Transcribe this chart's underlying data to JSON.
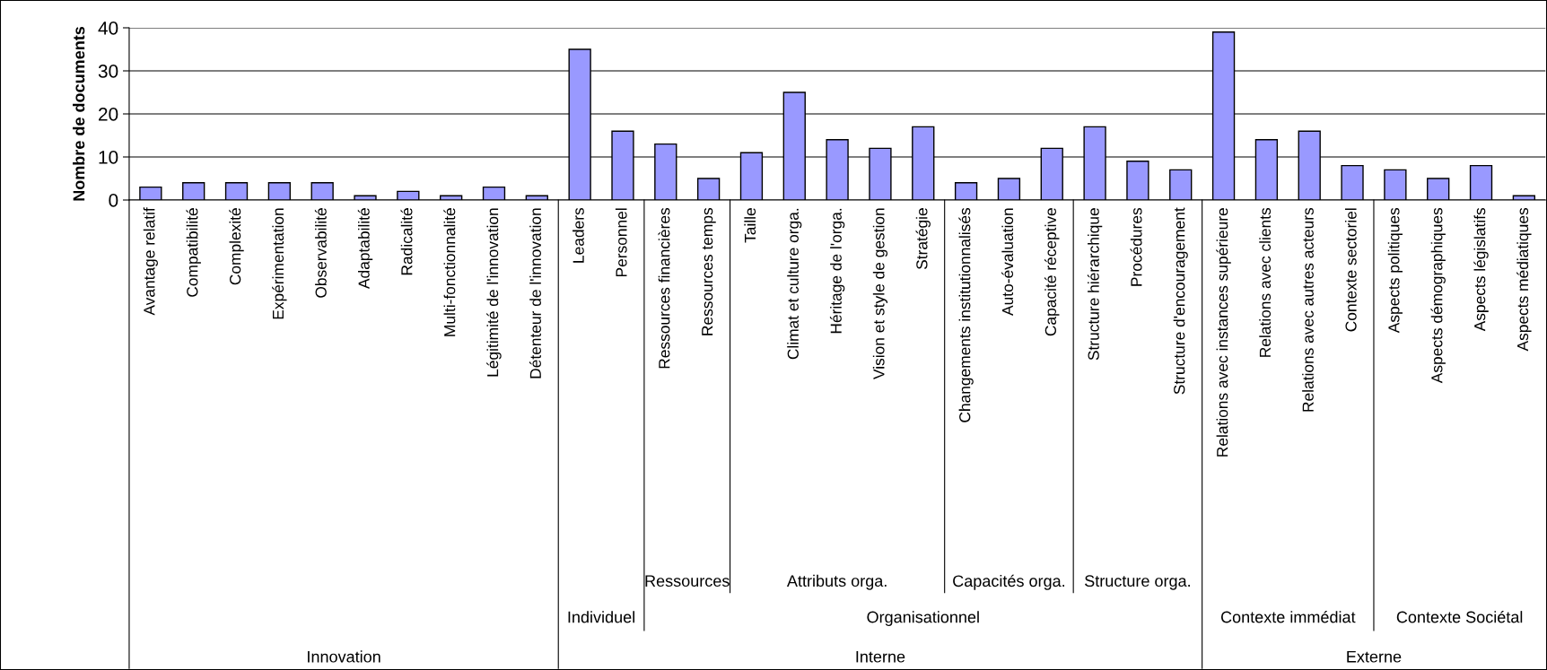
{
  "chart_data": {
    "type": "bar",
    "ylabel": "Nombre de documents",
    "categories": [
      "Avantage relatif",
      "Compatibilité",
      "Complexité",
      "Expérimentation",
      "Observabilité",
      "Adaptabilité",
      "Radicalité",
      "Multi-fonctionnalité",
      "Légitimité de l'innovation",
      "Détenteur de l'innovation",
      "Leaders",
      "Personnel",
      "Ressources financières",
      "Ressources temps",
      "Taille",
      "Climat et culture orga.",
      "Héritage de l'orga.",
      "Vision et style de gestion",
      "Stratégie",
      "Changements institutionnalisés",
      "Auto-évaluation",
      "Capacité réceptive",
      "Structure hiérarchique",
      "Procédures",
      "Structure d'encouragement",
      "Relations avec instances supérieure",
      "Relations avec clients",
      "Relations avec autres acteurs",
      "Contexte sectoriel",
      "Aspects politiques",
      "Aspects démographiques",
      "Aspects législatifs",
      "Aspects médiatiques"
    ],
    "values": [
      3,
      4,
      4,
      4,
      4,
      1,
      2,
      1,
      3,
      1,
      35,
      16,
      13,
      5,
      11,
      25,
      14,
      12,
      17,
      4,
      5,
      12,
      17,
      9,
      7,
      39,
      14,
      16,
      8,
      7,
      5,
      8,
      1
    ],
    "color": "#9999ff",
    "ylim": [
      0,
      40
    ],
    "yticks": [
      0,
      10,
      20,
      30,
      40
    ],
    "grid": "y",
    "annotations": [
      "Ressources",
      "Attributs orga.",
      "Capacités orga.",
      "Structure orga.",
      "Individuel",
      "Organisationnel",
      "Contexte immédiat",
      "Contexte Sociétal",
      "Innovation",
      "Interne",
      "Externe"
    ]
  }
}
